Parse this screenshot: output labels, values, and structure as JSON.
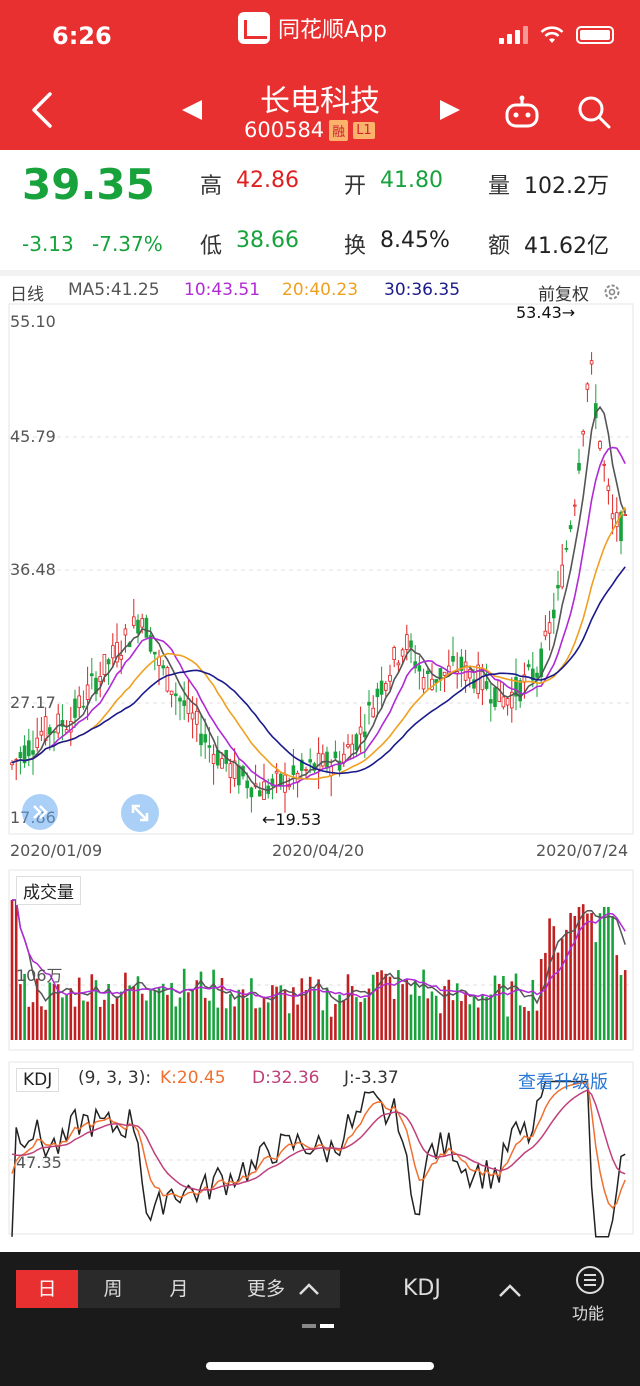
{
  "status": {
    "time": "6:26",
    "app_name": "同花顺App"
  },
  "stock": {
    "name": "长电科技",
    "code": "600584",
    "tag_margin": "融",
    "tag_level": "L1"
  },
  "quote": {
    "price": "39.35",
    "change": "-3.13",
    "change_pct": "-7.37%",
    "high_label": "高",
    "high": "42.86",
    "open_label": "开",
    "open": "41.80",
    "volume_label": "量",
    "volume": "102.2万",
    "low_label": "低",
    "low": "38.66",
    "turnover_label": "换",
    "turnover": "8.45%",
    "amount_label": "额",
    "amount": "41.62亿"
  },
  "ma": {
    "period": "日线",
    "ma5": "MA5:41.25",
    "ma10": "10:43.51",
    "ma20": "20:40.23",
    "ma30": "30:36.35",
    "adjust": "前复权",
    "colors": {
      "ma5": "#555555",
      "ma10": "#b02ad6",
      "ma20": "#f0a020",
      "ma30": "#1a1a8c"
    }
  },
  "main_chart": {
    "y_labels": [
      "55.10",
      "45.79",
      "36.48",
      "27.17",
      "17.86"
    ],
    "x_labels": [
      "2020/01/09",
      "2020/04/20",
      "2020/07/24"
    ],
    "max_marker": "53.43→",
    "min_marker": "←19.53"
  },
  "volume_chart": {
    "title": "成交量",
    "level_label": "106万"
  },
  "kdj": {
    "title": "KDJ",
    "params": "(9, 3, 3):",
    "k": "K:20.45",
    "d": "D:32.36",
    "j": "J:-3.37",
    "level_label": "47.35",
    "upgrade": "查看升级版",
    "colors": {
      "k": "#f07030",
      "d": "#c0407a",
      "j": "#222222"
    }
  },
  "bottom_bar": {
    "day": "日",
    "week": "周",
    "month": "月",
    "more": "更多",
    "indicator": "KDJ",
    "function": "功能"
  }
}
